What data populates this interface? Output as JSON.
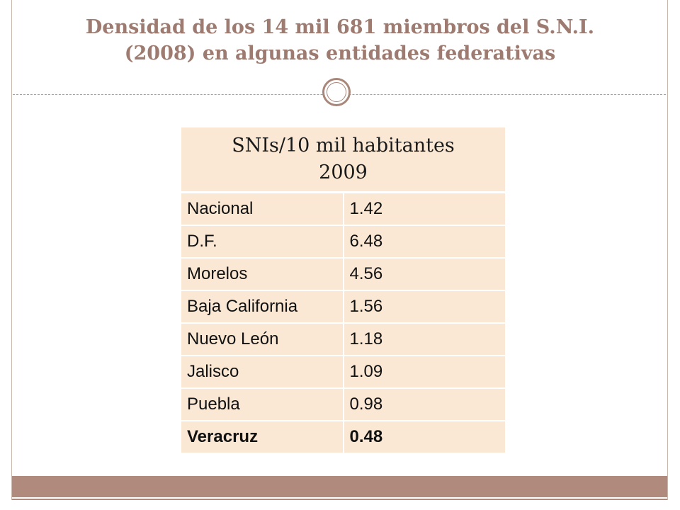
{
  "slide": {
    "title_line1": "Densidad de los 14 mil 681 miembros del S.N.I.",
    "title_line2": "(2008) en algunas entidades federativas"
  },
  "table": {
    "header_line1": "SNIs/10 mil habitantes",
    "header_line2": "2009",
    "rows": [
      {
        "entity": "Nacional",
        "value": "1.42"
      },
      {
        "entity": "D.F.",
        "value": "6.48"
      },
      {
        "entity": "Morelos",
        "value": "4.56"
      },
      {
        "entity": "Baja California",
        "value": "1.56"
      },
      {
        "entity": "Nuevo León",
        "value": "1.18"
      },
      {
        "entity": "Jalisco",
        "value": "1.09"
      },
      {
        "entity": "Puebla",
        "value": "0.98"
      },
      {
        "entity": "Veracruz",
        "value": "0.48"
      }
    ]
  },
  "colors": {
    "title": "#9e7b70",
    "accent": "#b08a7c",
    "table_fill": "#fbe8d4"
  }
}
